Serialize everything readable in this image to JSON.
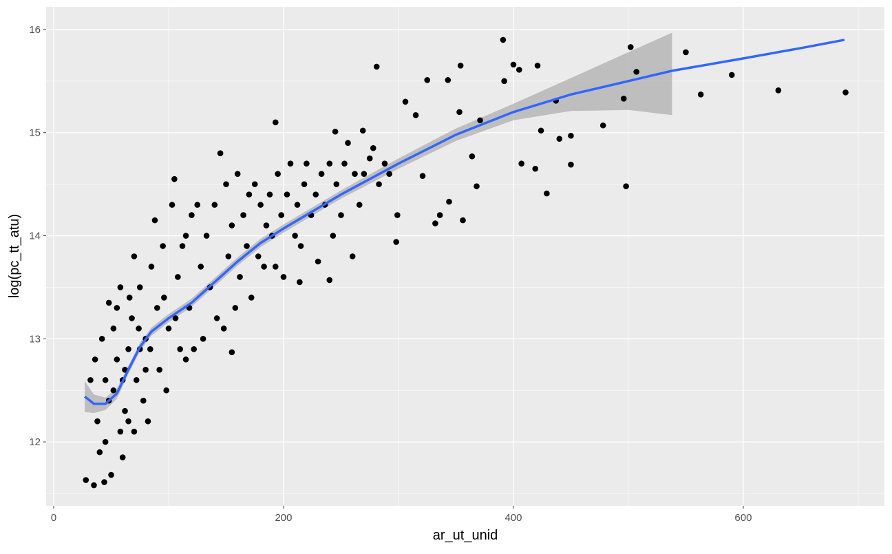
{
  "chart_data": {
    "type": "scatter",
    "x_label": "ar_ut_unid",
    "y_label": "log(pc_tt_atu)",
    "xlim": [
      -6.6,
      722.8
    ],
    "ylim": [
      11.38,
      16.22
    ],
    "xticks": [
      0,
      200,
      400,
      600
    ],
    "yticks": [
      12,
      13,
      14,
      15,
      16
    ],
    "x_minor_ticks": [
      100,
      300,
      500,
      700
    ],
    "y_minor_ticks": [
      11.5,
      12.5,
      13.5,
      14.5,
      15.5
    ],
    "grid": true,
    "point_color": "#000000",
    "line_color": "#3366ff",
    "band_color": "#999999",
    "points": {
      "x": [
        689,
        630.5,
        590,
        563,
        550,
        502,
        507,
        496,
        478,
        498,
        450,
        450,
        440,
        437,
        429,
        424,
        421,
        419,
        407,
        391,
        392,
        400,
        405,
        371,
        368,
        364,
        354,
        353,
        356,
        344,
        325,
        343,
        306,
        315,
        321,
        299,
        298,
        281,
        332,
        336,
        269,
        245,
        193,
        214,
        240,
        155,
        28,
        35,
        44,
        50,
        40,
        45,
        38,
        32,
        36,
        42,
        48,
        55,
        52,
        58,
        60,
        62,
        65,
        68,
        70,
        72,
        75,
        78,
        80,
        82,
        85,
        88,
        90,
        92,
        95,
        98,
        100,
        103,
        105,
        108,
        110,
        112,
        115,
        118,
        120,
        122,
        125,
        128,
        130,
        133,
        136,
        140,
        142,
        145,
        148,
        150,
        152,
        155,
        158,
        160,
        162,
        165,
        168,
        170,
        172,
        175,
        178,
        180,
        183,
        185,
        188,
        190,
        193,
        195,
        198,
        200,
        203,
        206,
        210,
        212,
        215,
        218,
        220,
        224,
        228,
        230,
        233,
        236,
        240,
        243,
        246,
        250,
        253,
        256,
        260,
        262,
        266,
        270,
        275,
        278,
        283,
        288,
        292,
        55,
        60,
        65,
        70,
        75,
        80,
        48,
        45,
        52,
        58,
        62,
        66,
        74,
        84,
        96,
        106,
        115
      ],
      "y": [
        15.39,
        15.41,
        15.56,
        15.37,
        15.78,
        15.83,
        15.59,
        15.33,
        15.07,
        14.48,
        14.69,
        14.97,
        14.94,
        15.31,
        14.41,
        15.02,
        15.65,
        14.65,
        14.7,
        15.9,
        15.5,
        15.66,
        15.61,
        15.12,
        14.48,
        14.77,
        15.65,
        15.2,
        14.15,
        14.33,
        15.51,
        15.51,
        15.3,
        15.17,
        14.58,
        14.2,
        13.94,
        15.64,
        14.12,
        14.2,
        15.02,
        15.01,
        15.1,
        13.55,
        13.57,
        12.87,
        11.63,
        11.58,
        11.61,
        11.68,
        11.9,
        12.0,
        12.2,
        12.6,
        12.8,
        13.0,
        13.35,
        13.3,
        12.5,
        12.1,
        11.85,
        12.3,
        12.9,
        13.2,
        13.8,
        12.6,
        13.5,
        12.4,
        13.0,
        12.2,
        13.7,
        14.15,
        13.3,
        12.7,
        13.9,
        12.5,
        13.1,
        14.3,
        14.55,
        13.6,
        12.9,
        13.9,
        14.0,
        13.3,
        14.2,
        12.9,
        14.3,
        13.7,
        13.0,
        14.0,
        13.5,
        14.3,
        13.2,
        14.8,
        13.1,
        14.5,
        13.8,
        14.1,
        13.3,
        14.6,
        13.6,
        14.2,
        13.9,
        14.4,
        13.4,
        14.5,
        13.8,
        14.3,
        13.7,
        14.1,
        14.4,
        14.0,
        13.7,
        14.6,
        14.2,
        13.6,
        14.4,
        14.7,
        14.0,
        14.3,
        13.9,
        14.5,
        14.7,
        14.2,
        14.4,
        13.75,
        14.6,
        14.3,
        14.7,
        14.0,
        14.5,
        14.2,
        14.7,
        14.9,
        13.8,
        14.6,
        14.3,
        14.6,
        14.75,
        14.85,
        14.5,
        14.7,
        14.6,
        12.8,
        12.6,
        12.2,
        12.1,
        12.9,
        12.7,
        12.4,
        12.6,
        13.1,
        13.5,
        12.7,
        13.4,
        13.1,
        12.9,
        13.4,
        13.2,
        12.8
      ]
    },
    "smooth": {
      "x": [
        27,
        35,
        45,
        55,
        65,
        75,
        85,
        100,
        120,
        140,
        160,
        180,
        200,
        250,
        300,
        350,
        400,
        450,
        500,
        538,
        600,
        650,
        688
      ],
      "y": [
        12.44,
        12.37,
        12.37,
        12.47,
        12.7,
        12.92,
        13.07,
        13.2,
        13.35,
        13.55,
        13.75,
        13.93,
        14.07,
        14.4,
        14.7,
        14.98,
        15.2,
        15.37,
        15.5,
        15.6,
        15.72,
        15.82,
        15.9
      ]
    },
    "band": {
      "x": [
        27,
        35,
        45,
        55,
        65,
        75,
        85,
        100,
        120,
        140,
        160,
        180,
        200,
        250,
        300,
        350,
        400,
        450,
        500,
        538
      ],
      "lower": [
        12.29,
        12.28,
        12.31,
        12.42,
        12.66,
        12.88,
        13.03,
        13.16,
        13.31,
        13.51,
        13.71,
        13.89,
        14.03,
        14.36,
        14.65,
        14.92,
        15.12,
        15.21,
        15.22,
        15.17
      ],
      "upper": [
        12.59,
        12.46,
        12.43,
        12.52,
        12.74,
        12.96,
        13.11,
        13.24,
        13.39,
        13.59,
        13.79,
        13.97,
        14.11,
        14.44,
        14.75,
        15.04,
        15.28,
        15.53,
        15.78,
        15.97
      ]
    }
  }
}
